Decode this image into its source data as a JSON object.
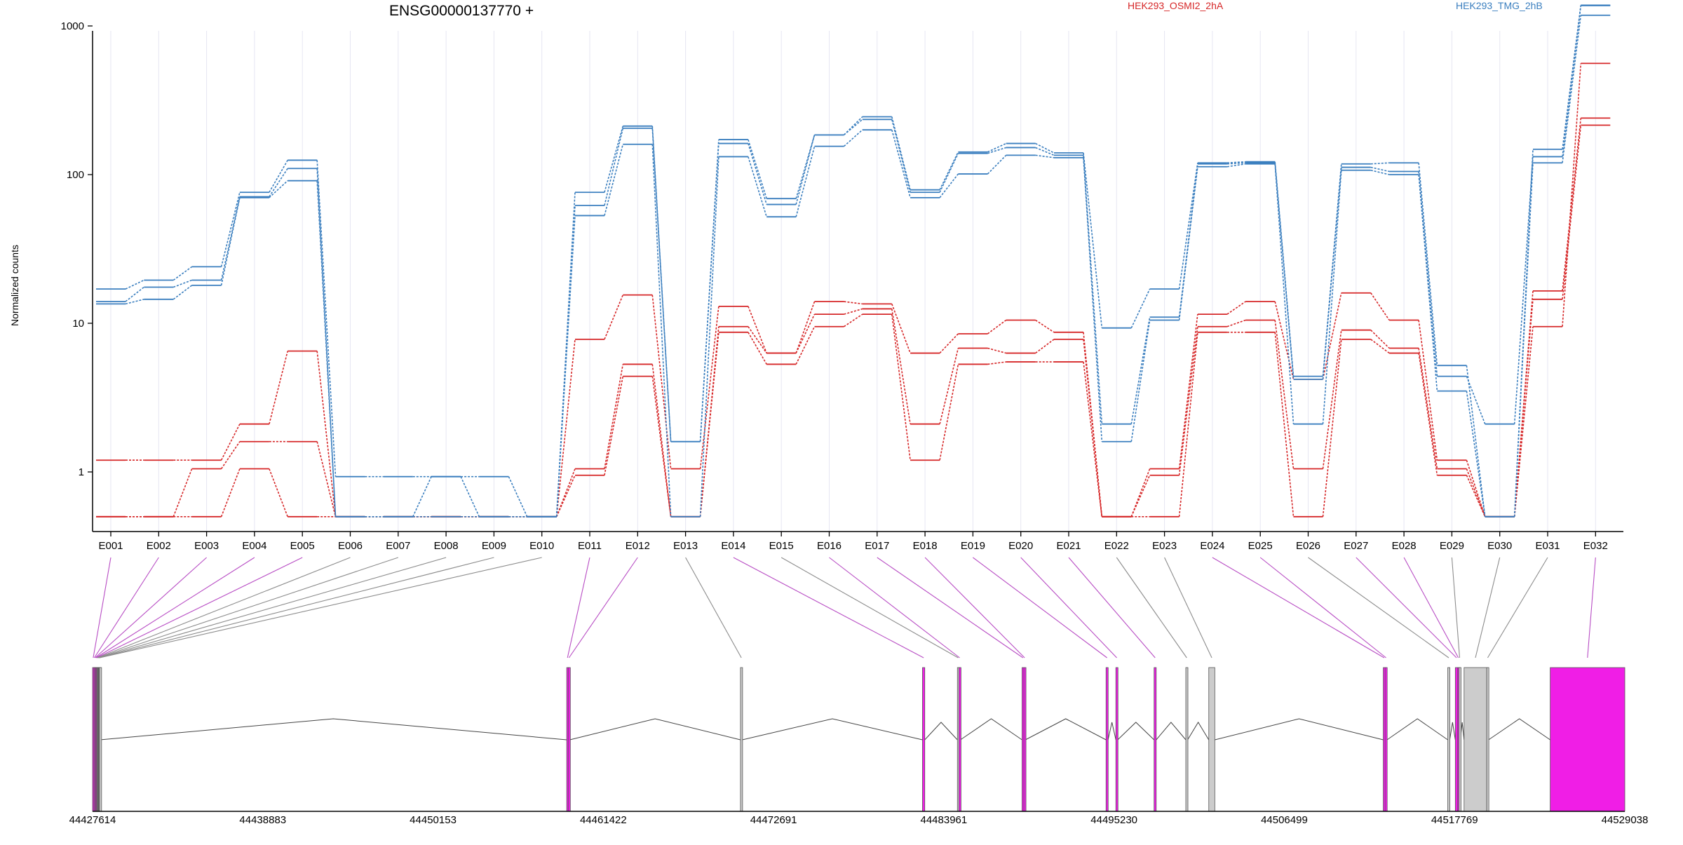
{
  "chart_data": {
    "type": "line",
    "title": "ENSG00000137770 +",
    "ylabel": "Normalized counts",
    "y_scale": "log",
    "y_ticks": [
      1,
      10,
      100,
      1000
    ],
    "y_tick_labels": [
      "1",
      "10",
      "100",
      "1000"
    ],
    "ylim": [
      0.5,
      1800
    ],
    "categories": [
      "E001",
      "E002",
      "E003",
      "E004",
      "E005",
      "E006",
      "E007",
      "E008",
      "E009",
      "E010",
      "E011",
      "E012",
      "E013",
      "E014",
      "E015",
      "E016",
      "E017",
      "E018",
      "E019",
      "E020",
      "E021",
      "E022",
      "E023",
      "E024",
      "E025",
      "E026",
      "E027",
      "E028",
      "E029",
      "E030",
      "E031",
      "E032"
    ],
    "legend": [
      {
        "name": "HEK293_OSMI2_2hA",
        "color": "#d62728"
      },
      {
        "name": "HEK293_TMG_2hB",
        "color": "#3b7fbf"
      }
    ],
    "series": [
      {
        "group": 0,
        "color": "#d62728",
        "values": [
          1.2,
          1.2,
          1.2,
          2.1,
          6.5,
          0.5,
          0.5,
          0.5,
          0.5,
          0.5,
          7.8,
          15.5,
          1.05,
          13,
          6.3,
          14,
          13.5,
          6.3,
          8.5,
          10.5,
          8.7,
          0.5,
          1.05,
          11.5,
          14,
          4.2,
          16,
          10.5,
          1.2,
          0.5,
          16.5,
          240
        ]
      },
      {
        "group": 0,
        "color": "#d62728",
        "values": [
          0.5,
          0.5,
          1.05,
          1.6,
          1.6,
          0.5,
          0.5,
          0.5,
          0.5,
          0.5,
          1.05,
          5.3,
          0.5,
          9.5,
          6.3,
          11.5,
          12.5,
          2.1,
          6.8,
          6.3,
          7.8,
          0.5,
          0.95,
          9.5,
          10.5,
          1.05,
          9,
          6.8,
          1.05,
          0.5,
          14.5,
          215
        ]
      },
      {
        "group": 0,
        "color": "#d62728",
        "values": [
          0.5,
          0.5,
          0.5,
          1.05,
          0.5,
          0.5,
          0.5,
          0.5,
          0.5,
          0.5,
          0.95,
          4.4,
          0.5,
          8.7,
          5.3,
          9.5,
          11.5,
          1.2,
          5.3,
          5.5,
          5.5,
          0.5,
          0.5,
          8.7,
          8.7,
          0.5,
          7.8,
          6.3,
          0.95,
          0.5,
          9.5,
          560
        ]
      },
      {
        "group": 1,
        "color": "#3b7fbf",
        "values": [
          17,
          19.5,
          24,
          76,
          125,
          0.93,
          0.93,
          0.93,
          0.93,
          0.5,
          76,
          212,
          1.6,
          172,
          69,
          185,
          245,
          79,
          142,
          162,
          140,
          9.3,
          17,
          120,
          122,
          4.4,
          118,
          120,
          5.2,
          0.5,
          148,
          1380
        ]
      },
      {
        "group": 1,
        "color": "#3b7fbf",
        "values": [
          14,
          17.5,
          19.5,
          71,
          110,
          0.5,
          0.5,
          0.93,
          0.5,
          0.5,
          62,
          205,
          1.6,
          162,
          63,
          185,
          235,
          76,
          139,
          152,
          135,
          2.1,
          11,
          118,
          120,
          4.2,
          112,
          105,
          4.4,
          2.1,
          132,
          1370
        ]
      },
      {
        "group": 1,
        "color": "#3b7fbf",
        "values": [
          13.5,
          14.5,
          18,
          70,
          91,
          0.5,
          0.5,
          0.5,
          0.5,
          0.5,
          53,
          160,
          0.5,
          132,
          52,
          155,
          200,
          70,
          101,
          135,
          130,
          1.6,
          10.5,
          113,
          118,
          2.1,
          107,
          100,
          3.5,
          0.5,
          120,
          1180
        ]
      }
    ],
    "genomic_axis": {
      "start": 44427614,
      "end": 44529038,
      "tick_labels": [
        "44427614",
        "44438883",
        "44450153",
        "44461422",
        "44472691",
        "44483961",
        "44495230",
        "44506499",
        "44517769",
        "44529038"
      ]
    },
    "exons": [
      {
        "id": "E001",
        "start": 44427614,
        "end": 44427700,
        "highlight": true
      },
      {
        "id": "E002",
        "start": 44427700,
        "end": 44427760,
        "highlight": true
      },
      {
        "id": "E003",
        "start": 44427760,
        "end": 44427810,
        "highlight": true
      },
      {
        "id": "E004",
        "start": 44427810,
        "end": 44427860,
        "highlight": true
      },
      {
        "id": "E005",
        "start": 44427860,
        "end": 44427910,
        "highlight": true
      },
      {
        "id": "E006",
        "start": 44427910,
        "end": 44427950,
        "highlight": false
      },
      {
        "id": "E007",
        "start": 44427950,
        "end": 44427990,
        "highlight": false
      },
      {
        "id": "E008",
        "start": 44427990,
        "end": 44428030,
        "highlight": false
      },
      {
        "id": "E009",
        "start": 44428030,
        "end": 44428070,
        "highlight": false
      },
      {
        "id": "E010",
        "start": 44428070,
        "end": 44428100,
        "highlight": false
      },
      {
        "id": "E011",
        "start": 44459000,
        "end": 44459100,
        "highlight": true
      },
      {
        "id": "E012",
        "start": 44459100,
        "end": 44459200,
        "highlight": true
      },
      {
        "id": "E013",
        "start": 44470500,
        "end": 44470620,
        "highlight": false
      },
      {
        "id": "E014",
        "start": 44482550,
        "end": 44482700,
        "highlight": true
      },
      {
        "id": "E015",
        "start": 44484860,
        "end": 44484960,
        "highlight": false
      },
      {
        "id": "E016",
        "start": 44484960,
        "end": 44485060,
        "highlight": true
      },
      {
        "id": "E017",
        "start": 44489140,
        "end": 44489260,
        "highlight": true
      },
      {
        "id": "E018",
        "start": 44489260,
        "end": 44489360,
        "highlight": true
      },
      {
        "id": "E019",
        "start": 44494700,
        "end": 44494830,
        "highlight": true
      },
      {
        "id": "E020",
        "start": 44495350,
        "end": 44495470,
        "highlight": true
      },
      {
        "id": "E021",
        "start": 44497880,
        "end": 44498020,
        "highlight": true
      },
      {
        "id": "E022",
        "start": 44499980,
        "end": 44500100,
        "highlight": false
      },
      {
        "id": "E023",
        "start": 44501500,
        "end": 44501900,
        "highlight": false
      },
      {
        "id": "E024",
        "start": 44513050,
        "end": 44513170,
        "highlight": true
      },
      {
        "id": "E025",
        "start": 44513170,
        "end": 44513300,
        "highlight": true
      },
      {
        "id": "E026",
        "start": 44517320,
        "end": 44517450,
        "highlight": false
      },
      {
        "id": "E027",
        "start": 44517820,
        "end": 44517980,
        "highlight": true
      },
      {
        "id": "E028",
        "start": 44517980,
        "end": 44518060,
        "highlight": true
      },
      {
        "id": "E029",
        "start": 44518060,
        "end": 44518150,
        "highlight": false
      },
      {
        "id": "E030",
        "start": 44518400,
        "end": 44519900,
        "highlight": false
      },
      {
        "id": "E031",
        "start": 44519900,
        "end": 44520020,
        "highlight": false
      },
      {
        "id": "E032",
        "start": 44524100,
        "end": 44529038,
        "highlight": true
      }
    ],
    "colors": {
      "highlight_exon": "#f01ee6",
      "plain_exon": "#cccccc",
      "highlight_connector": "#b84dc4",
      "plain_connector": "#8c8c8c",
      "gridline": "#e6e6f2",
      "intron": "#444444"
    }
  }
}
